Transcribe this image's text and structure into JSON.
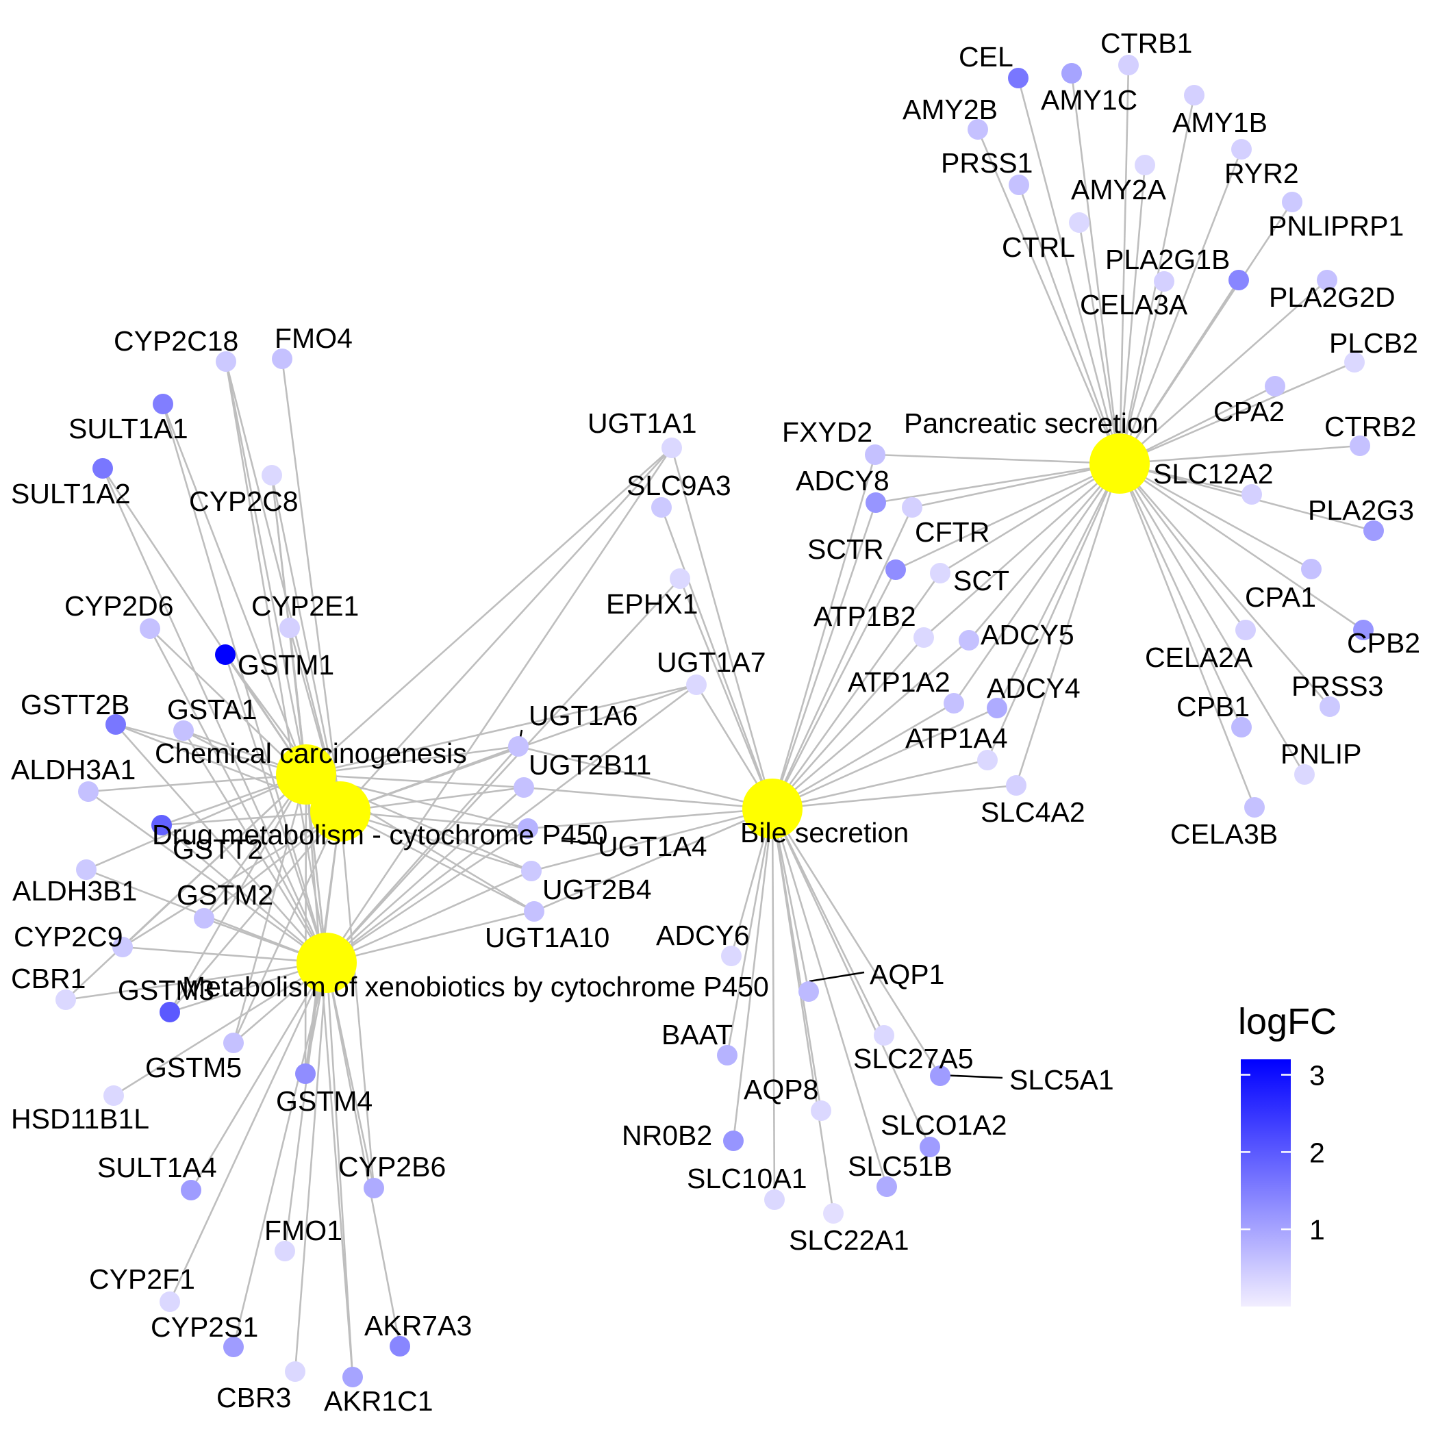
{
  "chart_data": {
    "type": "network",
    "pathways": [
      {
        "id": "cc",
        "label": "Chemical carcinogenesis"
      },
      {
        "id": "dm",
        "label": "Drug metabolism - cytochrome P450"
      },
      {
        "id": "mx",
        "label": "Metabolism of xenobiotics by cytochrome P450"
      },
      {
        "id": "bs",
        "label": "Bile secretion"
      },
      {
        "id": "ps",
        "label": "Pancreatic secretion"
      }
    ],
    "genes": [
      {
        "label": "CYP2C18",
        "logFC": 0.5,
        "pathways": [
          "cc",
          "dm",
          "mx"
        ]
      },
      {
        "label": "FMO4",
        "logFC": 0.6,
        "pathways": [
          "dm"
        ]
      },
      {
        "label": "SULT1A1",
        "logFC": 1.5,
        "pathways": [
          "cc",
          "mx"
        ]
      },
      {
        "label": "SULT1A2",
        "logFC": 1.6,
        "pathways": [
          "cc",
          "mx"
        ]
      },
      {
        "label": "CYP2C8",
        "logFC": 0.3,
        "pathways": [
          "cc",
          "dm",
          "mx"
        ]
      },
      {
        "label": "CYP2D6",
        "logFC": 0.6,
        "pathways": [
          "dm",
          "mx"
        ]
      },
      {
        "label": "CYP2E1",
        "logFC": 0.4,
        "pathways": [
          "cc",
          "dm",
          "mx"
        ]
      },
      {
        "label": "GSTM1",
        "logFC": 3.2,
        "pathways": [
          "cc",
          "dm",
          "mx"
        ]
      },
      {
        "label": "GSTT2B",
        "logFC": 1.6,
        "pathways": [
          "cc",
          "dm",
          "mx"
        ]
      },
      {
        "label": "GSTA1",
        "logFC": 0.6,
        "pathways": [
          "cc",
          "dm",
          "mx"
        ]
      },
      {
        "label": "ALDH3A1",
        "logFC": 0.6,
        "pathways": [
          "cc",
          "mx"
        ]
      },
      {
        "label": "GSTT2",
        "logFC": 1.9,
        "pathways": [
          "cc",
          "dm",
          "mx"
        ]
      },
      {
        "label": "ALDH3B1",
        "logFC": 0.5,
        "pathways": [
          "cc",
          "mx"
        ]
      },
      {
        "label": "GSTM2",
        "logFC": 0.6,
        "pathways": [
          "cc",
          "dm",
          "mx"
        ]
      },
      {
        "label": "CYP2C9",
        "logFC": 0.5,
        "pathways": [
          "cc",
          "dm",
          "mx"
        ]
      },
      {
        "label": "CBR1",
        "logFC": 0.3,
        "pathways": [
          "cc",
          "mx"
        ]
      },
      {
        "label": "GSTM3",
        "logFC": 2.0,
        "pathways": [
          "cc",
          "dm",
          "mx"
        ]
      },
      {
        "label": "GSTM5",
        "logFC": 0.6,
        "pathways": [
          "cc",
          "dm",
          "mx"
        ]
      },
      {
        "label": "HSD11B1L",
        "logFC": 0.3,
        "pathways": [
          "mx"
        ]
      },
      {
        "label": "GSTM4",
        "logFC": 1.3,
        "pathways": [
          "cc",
          "dm",
          "mx"
        ]
      },
      {
        "label": "SULT1A4",
        "logFC": 1.1,
        "pathways": [
          "mx"
        ]
      },
      {
        "label": "CYP2B6",
        "logFC": 0.9,
        "pathways": [
          "dm",
          "mx"
        ]
      },
      {
        "label": "FMO1",
        "logFC": 0.3,
        "pathways": [
          "dm"
        ]
      },
      {
        "label": "CYP2F1",
        "logFC": 0.3,
        "pathways": [
          "mx"
        ]
      },
      {
        "label": "CYP2S1",
        "logFC": 1.1,
        "pathways": [
          "mx"
        ]
      },
      {
        "label": "AKR7A3",
        "logFC": 1.4,
        "pathways": [
          "mx"
        ]
      },
      {
        "label": "CBR3",
        "logFC": 0.3,
        "pathways": [
          "mx"
        ]
      },
      {
        "label": "AKR1C1",
        "logFC": 1.0,
        "pathways": [
          "cc",
          "mx"
        ]
      },
      {
        "label": "UGT1A6",
        "logFC": 0.6,
        "pathways": [
          "cc",
          "dm",
          "mx",
          "bs"
        ]
      },
      {
        "label": "UGT2B11",
        "logFC": 0.6,
        "pathways": [
          "cc",
          "dm",
          "mx",
          "bs"
        ]
      },
      {
        "label": "UGT1A4",
        "logFC": 0.8,
        "pathways": [
          "cc",
          "dm",
          "mx",
          "bs"
        ]
      },
      {
        "label": "UGT2B4",
        "logFC": 0.5,
        "pathways": [
          "cc",
          "dm",
          "mx",
          "bs"
        ]
      },
      {
        "label": "UGT1A10",
        "logFC": 0.6,
        "pathways": [
          "cc",
          "dm",
          "mx",
          "bs"
        ]
      },
      {
        "label": "UGT1A1",
        "logFC": 0.3,
        "pathways": [
          "cc",
          "dm",
          "mx",
          "bs"
        ]
      },
      {
        "label": "SLC9A3",
        "logFC": 0.5,
        "pathways": [
          "bs"
        ]
      },
      {
        "label": "EPHX1",
        "logFC": 0.3,
        "pathways": [
          "mx",
          "bs"
        ]
      },
      {
        "label": "UGT1A7",
        "logFC": 0.3,
        "pathways": [
          "cc",
          "dm",
          "mx",
          "bs"
        ]
      },
      {
        "label": "FXYD2",
        "logFC": 0.6,
        "pathways": [
          "bs",
          "ps"
        ]
      },
      {
        "label": "ADCY8",
        "logFC": 1.2,
        "pathways": [
          "bs",
          "ps"
        ]
      },
      {
        "label": "CFTR",
        "logFC": 0.4,
        "pathways": [
          "bs",
          "ps"
        ]
      },
      {
        "label": "SCTR",
        "logFC": 1.3,
        "pathways": [
          "bs",
          "ps"
        ]
      },
      {
        "label": "SCT",
        "logFC": 0.3,
        "pathways": [
          "bs",
          "ps"
        ]
      },
      {
        "label": "ATP1B2",
        "logFC": 0.3,
        "pathways": [
          "bs",
          "ps"
        ]
      },
      {
        "label": "ADCY5",
        "logFC": 0.6,
        "pathways": [
          "bs",
          "ps"
        ]
      },
      {
        "label": "ATP1A2",
        "logFC": 0.6,
        "pathways": [
          "bs",
          "ps"
        ]
      },
      {
        "label": "ADCY4",
        "logFC": 0.9,
        "pathways": [
          "bs",
          "ps"
        ]
      },
      {
        "label": "ATP1A4",
        "logFC": 0.3,
        "pathways": [
          "bs",
          "ps"
        ]
      },
      {
        "label": "SLC4A2",
        "logFC": 0.4,
        "pathways": [
          "bs",
          "ps"
        ]
      },
      {
        "label": "ADCY6",
        "logFC": 0.3,
        "pathways": [
          "bs"
        ]
      },
      {
        "label": "AQP1",
        "logFC": 0.7,
        "pathways": [
          "bs"
        ]
      },
      {
        "label": "BAAT",
        "logFC": 0.8,
        "pathways": [
          "bs"
        ]
      },
      {
        "label": "SLC27A5",
        "logFC": 0.3,
        "pathways": [
          "bs"
        ]
      },
      {
        "label": "SLC5A1",
        "logFC": 1.1,
        "pathways": [
          "bs"
        ]
      },
      {
        "label": "AQP8",
        "logFC": 0.3,
        "pathways": [
          "bs"
        ]
      },
      {
        "label": "SLCO1A2",
        "logFC": 1.1,
        "pathways": [
          "bs"
        ]
      },
      {
        "label": "NR0B2",
        "logFC": 1.2,
        "pathways": [
          "bs"
        ]
      },
      {
        "label": "SLC10A1",
        "logFC": 0.3,
        "pathways": [
          "bs"
        ]
      },
      {
        "label": "SLC51B",
        "logFC": 0.9,
        "pathways": [
          "bs"
        ]
      },
      {
        "label": "SLC22A1",
        "logFC": 0.2,
        "pathways": [
          "bs"
        ]
      },
      {
        "label": "CEL",
        "logFC": 1.6,
        "pathways": [
          "ps"
        ]
      },
      {
        "label": "CTRB1",
        "logFC": 0.4,
        "pathways": [
          "ps"
        ]
      },
      {
        "label": "AMY2B",
        "logFC": 0.6,
        "pathways": [
          "ps"
        ]
      },
      {
        "label": "AMY1C",
        "logFC": 1.0,
        "pathways": [
          "ps"
        ]
      },
      {
        "label": "AMY1B",
        "logFC": 0.4,
        "pathways": [
          "ps"
        ]
      },
      {
        "label": "PRSS1",
        "logFC": 0.6,
        "pathways": [
          "ps"
        ]
      },
      {
        "label": "AMY2A",
        "logFC": 0.3,
        "pathways": [
          "ps"
        ]
      },
      {
        "label": "RYR2",
        "logFC": 0.4,
        "pathways": [
          "ps"
        ]
      },
      {
        "label": "CTRL",
        "logFC": 0.3,
        "pathways": [
          "ps"
        ]
      },
      {
        "label": "PNLIPRP1",
        "logFC": 0.5,
        "pathways": [
          "ps"
        ]
      },
      {
        "label": "PLA2G1B",
        "logFC": 1.4,
        "pathways": [
          "ps"
        ]
      },
      {
        "label": "CELA3A",
        "logFC": 0.4,
        "pathways": [
          "ps"
        ]
      },
      {
        "label": "PLA2G2D",
        "logFC": 0.6,
        "pathways": [
          "ps"
        ]
      },
      {
        "label": "PLCB2",
        "logFC": 0.3,
        "pathways": [
          "ps"
        ]
      },
      {
        "label": "CPA2",
        "logFC": 0.6,
        "pathways": [
          "ps"
        ]
      },
      {
        "label": "CTRB2",
        "logFC": 0.6,
        "pathways": [
          "ps"
        ]
      },
      {
        "label": "SLC12A2",
        "logFC": 0.4,
        "pathways": [
          "ps"
        ]
      },
      {
        "label": "PLA2G3",
        "logFC": 1.1,
        "pathways": [
          "ps"
        ]
      },
      {
        "label": "CPA1",
        "logFC": 0.6,
        "pathways": [
          "ps"
        ]
      },
      {
        "label": "CPB2",
        "logFC": 1.2,
        "pathways": [
          "ps"
        ]
      },
      {
        "label": "CELA2A",
        "logFC": 0.4,
        "pathways": [
          "ps"
        ]
      },
      {
        "label": "PRSS3",
        "logFC": 0.5,
        "pathways": [
          "ps"
        ]
      },
      {
        "label": "CPB1",
        "logFC": 0.7,
        "pathways": [
          "ps"
        ]
      },
      {
        "label": "PNLIP",
        "logFC": 0.3,
        "pathways": [
          "ps"
        ]
      },
      {
        "label": "CELA3B",
        "logFC": 0.6,
        "pathways": [
          "ps"
        ]
      }
    ],
    "legend": {
      "title": "logFC",
      "ticks": [
        1,
        2,
        3
      ],
      "range": [
        0,
        3.2
      ],
      "colors": [
        "#f2eeff",
        "#0000ff"
      ],
      "placement": "right"
    },
    "pathway_color": "#ffff00",
    "edge_color": "#bebebe"
  }
}
